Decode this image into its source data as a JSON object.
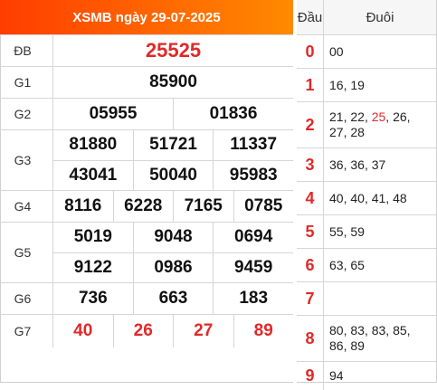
{
  "title": "XSMB ngày 29-07-2025",
  "prizes": [
    {
      "label": "ĐB",
      "lines": [
        [
          "25525"
        ]
      ],
      "red": true
    },
    {
      "label": "G1",
      "lines": [
        [
          "85900"
        ]
      ]
    },
    {
      "label": "G2",
      "lines": [
        [
          "05955",
          "01836"
        ]
      ]
    },
    {
      "label": "G3",
      "lines": [
        [
          "81880",
          "51721",
          "11337"
        ],
        [
          "43041",
          "50040",
          "95983"
        ]
      ]
    },
    {
      "label": "G4",
      "lines": [
        [
          "8116",
          "6228",
          "7165",
          "0785"
        ]
      ]
    },
    {
      "label": "G5",
      "lines": [
        [
          "5019",
          "9048",
          "0694"
        ],
        [
          "9122",
          "0986",
          "9459"
        ]
      ]
    },
    {
      "label": "G6",
      "lines": [
        [
          "736",
          "663",
          "183"
        ]
      ]
    },
    {
      "label": "G7",
      "lines": [
        [
          "40",
          "26",
          "27",
          "89"
        ]
      ],
      "red": true
    }
  ],
  "loto": {
    "head_label": "Đầu",
    "tail_label": "Đuôi",
    "rows": [
      {
        "dau": "0",
        "duoi": [
          "00"
        ]
      },
      {
        "dau": "1",
        "duoi": [
          "16",
          "19"
        ]
      },
      {
        "dau": "2",
        "duoi": [
          "21",
          "22",
          "25",
          "26",
          "27",
          "28"
        ],
        "highlight": "25"
      },
      {
        "dau": "3",
        "duoi": [
          "36",
          "36",
          "37"
        ]
      },
      {
        "dau": "4",
        "duoi": [
          "40",
          "40",
          "41",
          "48"
        ]
      },
      {
        "dau": "5",
        "duoi": [
          "55",
          "59"
        ]
      },
      {
        "dau": "6",
        "duoi": [
          "63",
          "65"
        ]
      },
      {
        "dau": "7",
        "duoi": []
      },
      {
        "dau": "8",
        "duoi": [
          "80",
          "83",
          "83",
          "85",
          "86",
          "89"
        ]
      },
      {
        "dau": "9",
        "duoi": [
          "94"
        ]
      }
    ]
  },
  "colors": {
    "accent_start": "#ff3d00",
    "accent_end": "#ff8a00",
    "highlight": "#e02929"
  }
}
